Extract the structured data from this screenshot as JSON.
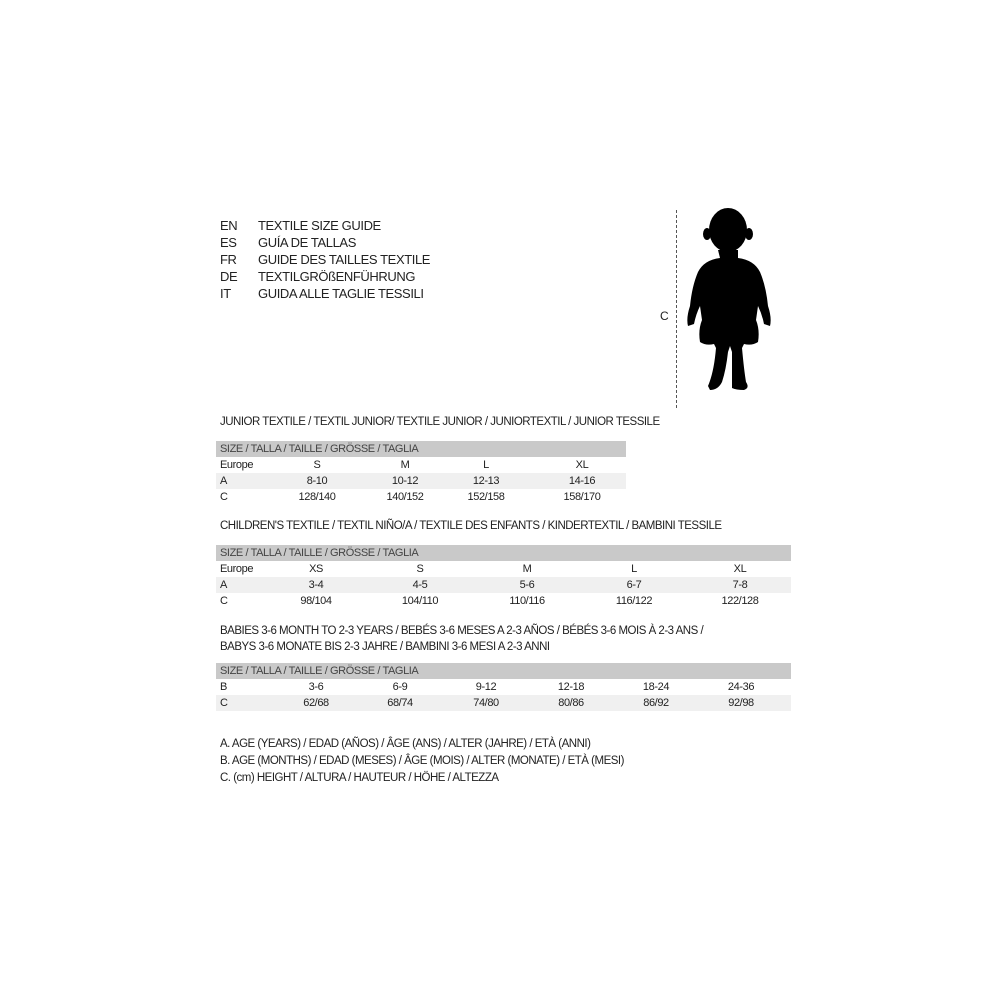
{
  "guide_titles": [
    {
      "code": "EN",
      "text": "TEXTILE SIZE GUIDE"
    },
    {
      "code": "ES",
      "text": "GUÍA DE TALLAS"
    },
    {
      "code": "FR",
      "text": "GUIDE DES TAILLES TEXTILE"
    },
    {
      "code": "DE",
      "text": "TEXTILGRÖßENFÜHRUNG"
    },
    {
      "code": "IT",
      "text": "GUIDA ALLE TAGLIE TESSILI"
    }
  ],
  "figure": {
    "label": "C",
    "icon": "child-silhouette-icon"
  },
  "junior": {
    "title": "JUNIOR TEXTILE / TEXTIL JUNIOR/ TEXTILE JUNIOR / JUNIORTEXTIL / JUNIOR TESSILE",
    "header": "SIZE / TALLA / TAILLE / GRÖSSE / TAGLIA",
    "rows": [
      {
        "label": "Europe",
        "values": [
          "S",
          "M",
          "L",
          "XL"
        ]
      },
      {
        "label": "A",
        "values": [
          "8-10",
          "10-12",
          "12-13",
          "14-16"
        ]
      },
      {
        "label": "C",
        "values": [
          "128/140",
          "140/152",
          "152/158",
          "158/170"
        ]
      }
    ]
  },
  "children": {
    "title": "CHILDREN'S TEXTILE / TEXTIL NIÑO/A / TEXTILE DES ENFANTS / KINDERTEXTIL / BAMBINI TESSILE",
    "header": "SIZE / TALLA / TAILLE / GRÖSSE / TAGLIA",
    "rows": [
      {
        "label": "Europe",
        "values": [
          "XS",
          "S",
          "M",
          "L",
          "XL"
        ]
      },
      {
        "label": "A",
        "values": [
          "3-4",
          "4-5",
          "5-6",
          "6-7",
          "7-8"
        ]
      },
      {
        "label": "C",
        "values": [
          "98/104",
          "104/110",
          "110/116",
          "116/122",
          "122/128"
        ]
      }
    ]
  },
  "babies": {
    "title_line1": "BABIES 3-6 MONTH TO 2-3 YEARS / BEBÉS 3-6 MESES A 2-3 AÑOS / BÉBÉS 3-6 MOIS À 2-3 ANS /",
    "title_line2": "BABYS 3-6 MONATE BIS 2-3 JAHRE / BAMBINI 3-6 MESI A 2-3 ANNI",
    "header": "SIZE / TALLA / TAILLE / GRÖSSE / TAGLIA",
    "rows": [
      {
        "label": "B",
        "values": [
          "3-6",
          "6-9",
          "9-12",
          "12-18",
          "18-24",
          "24-36"
        ]
      },
      {
        "label": "C",
        "values": [
          "62/68",
          "68/74",
          "74/80",
          "80/86",
          "86/92",
          "92/98"
        ]
      }
    ]
  },
  "legend": [
    "A. AGE (YEARS) / EDAD (AÑOS) / ÂGE (ANS) / ALTER (JAHRE) / ETÀ (ANNI)",
    "B. AGE (MONTHS) / EDAD (MESES) / ÂGE (MOIS) / ALTER (MONATE) / ETÀ (MESI)",
    "C. (cm) HEIGHT / ALTURA / HAUTEUR / HÖHE / ALTEZZA"
  ],
  "colors": {
    "header_bg": "#c9c9c9",
    "alt_row_bg": "#f0f0f0",
    "text": "#222222"
  }
}
